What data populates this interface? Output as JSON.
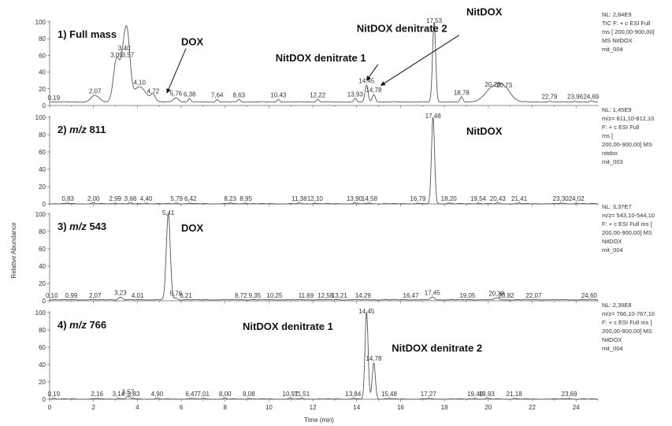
{
  "chart_data": {
    "type": "line",
    "xlabel": "Time (min)",
    "ylabel": "Relative Abundance",
    "xlim": [
      0,
      25
    ],
    "ylim": [
      0,
      100
    ],
    "x_ticks": [
      "0",
      "2",
      "4",
      "6",
      "8",
      "10",
      "12",
      "14",
      "16",
      "18",
      "20",
      "22",
      "24"
    ],
    "y_ticks": [
      "0",
      "20",
      "40",
      "60",
      "80",
      "100"
    ],
    "panels": [
      {
        "title_prefix": "1) ",
        "title_main": "Full mass",
        "title_mz": "",
        "side_info": [
          "NL: 2,84E9",
          "TIC F: + c ESI Full",
          "ms [ 200,00-900,00]",
          "MS NitDOX",
          "mit_004"
        ],
        "baseline": 4,
        "peaks": [
          {
            "x": 0.19,
            "label": "0,19",
            "h": 4
          },
          {
            "x": 2.07,
            "label": "2,07",
            "h": 12,
            "w": 0.18
          },
          {
            "x": 3.05,
            "label": "3,05",
            "h": 55,
            "w": 0.14
          },
          {
            "x": 3.4,
            "label": "3,40",
            "h": 63,
            "w": 0.14
          },
          {
            "x": 3.57,
            "label": "3,57",
            "h": 55,
            "w": 0.12
          },
          {
            "x": 4.1,
            "label": "4,10",
            "h": 22,
            "w": 0.3
          },
          {
            "x": 4.72,
            "label": "4,72",
            "h": 12,
            "w": 0.1
          },
          {
            "x": 5.76,
            "label": "5,76",
            "h": 9,
            "w": 0.12
          },
          {
            "x": 6.38,
            "label": "6,38",
            "h": 8
          },
          {
            "x": 7.64,
            "label": "7,64",
            "h": 7
          },
          {
            "x": 8.63,
            "label": "8,63",
            "h": 7
          },
          {
            "x": 10.43,
            "label": "10,43",
            "h": 7
          },
          {
            "x": 12.22,
            "label": "12,22",
            "h": 7
          },
          {
            "x": 13.93,
            "label": "13,93",
            "h": 8
          },
          {
            "x": 14.45,
            "label": "14,45",
            "h": 24,
            "w": 0.07
          },
          {
            "x": 14.78,
            "label": "14,78",
            "h": 13,
            "w": 0.07
          },
          {
            "x": 17.53,
            "label": "17,53",
            "h": 100,
            "w": 0.07
          },
          {
            "x": 18.78,
            "label": "18,78",
            "h": 10
          },
          {
            "x": 20.2,
            "label": "20,20",
            "h": 20,
            "w": 0.35
          },
          {
            "x": 20.73,
            "label": "20,73",
            "h": 19,
            "w": 0.3
          },
          {
            "x": 22.79,
            "label": "22,79",
            "h": 5
          },
          {
            "x": 23.96,
            "label": "23,96",
            "h": 5
          },
          {
            "x": 24.69,
            "label": "24,69",
            "h": 5
          }
        ],
        "annotations": [
          {
            "text": "DOX",
            "x": 6.0,
            "y": 72,
            "target_x": 5.35,
            "target_y": 15
          },
          {
            "text": "NitDOX denitrate 2",
            "x": 14.0,
            "y": 88,
            "target_x": 15.1,
            "target_y": 24
          },
          {
            "text": "NitDOX denitrate 1",
            "x": 10.3,
            "y": 53,
            "target_x": 14.45,
            "target_y": 30
          },
          {
            "text": "NitDOX",
            "x": 19.0,
            "y": 108
          }
        ]
      },
      {
        "title_prefix": "2) ",
        "title_main": "",
        "title_mz": "811",
        "side_info": [
          "NL: 1,45E9",
          "m/z= 811,10-812,10",
          "F: + c ESI Full",
          "ms [",
          "200,00-900,00]  MS",
          "nitdox",
          "mit_003"
        ],
        "baseline": 0,
        "peaks": [
          {
            "x": 0.83,
            "label": "0,83",
            "h": 1
          },
          {
            "x": 2.0,
            "label": "2,00",
            "h": 1
          },
          {
            "x": 2.99,
            "label": "2,99",
            "h": 1
          },
          {
            "x": 3.68,
            "label": "3,68",
            "h": 1
          },
          {
            "x": 4.4,
            "label": "4,40",
            "h": 1
          },
          {
            "x": 5.79,
            "label": "5,79",
            "h": 1
          },
          {
            "x": 6.42,
            "label": "6,42",
            "h": 1
          },
          {
            "x": 8.23,
            "label": "8,23",
            "h": 1
          },
          {
            "x": 8.95,
            "label": "8,95",
            "h": 1
          },
          {
            "x": 11.38,
            "label": "11,38",
            "h": 1
          },
          {
            "x": 12.1,
            "label": "12,10",
            "h": 1
          },
          {
            "x": 13.9,
            "label": "13,90",
            "h": 1
          },
          {
            "x": 14.58,
            "label": "14,58",
            "h": 1
          },
          {
            "x": 16.79,
            "label": "16,79",
            "h": 1
          },
          {
            "x": 17.48,
            "label": "17,48",
            "h": 100,
            "w": 0.07
          },
          {
            "x": 18.2,
            "label": "18,20",
            "h": 1
          },
          {
            "x": 19.54,
            "label": "19,54",
            "h": 1
          },
          {
            "x": 20.43,
            "label": "20,43",
            "h": 1
          },
          {
            "x": 21.41,
            "label": "21,41",
            "h": 1
          },
          {
            "x": 23.3,
            "label": "23,30",
            "h": 1
          },
          {
            "x": 24.02,
            "label": "24,02",
            "h": 1
          }
        ],
        "annotations": [
          {
            "text": "NitDOX",
            "x": 19.0,
            "y": 80
          }
        ]
      },
      {
        "title_prefix": "3) ",
        "title_main": "",
        "title_mz": "543",
        "side_info": [
          "NL: 3,37E7",
          "m/z= 543,10-544,10",
          "F: + c ESI Full ms [",
          "200,00-900,00]  MS",
          "NitDOX",
          "mit_004"
        ],
        "baseline": 1,
        "peaks": [
          {
            "x": 0.1,
            "label": "0,10",
            "h": 1
          },
          {
            "x": 0.99,
            "label": "0,99",
            "h": 1
          },
          {
            "x": 2.07,
            "label": "2,07",
            "h": 1
          },
          {
            "x": 3.23,
            "label": "3,23",
            "h": 4,
            "w": 0.08
          },
          {
            "x": 4.01,
            "label": "4,01",
            "h": 1
          },
          {
            "x": 5.41,
            "label": "5,41",
            "h": 100,
            "w": 0.09
          },
          {
            "x": 5.76,
            "label": "5,76",
            "h": 3
          },
          {
            "x": 6.21,
            "label": "6,21",
            "h": 1
          },
          {
            "x": 8.72,
            "label": "8,72",
            "h": 1
          },
          {
            "x": 9.35,
            "label": "9,35",
            "h": 1
          },
          {
            "x": 10.25,
            "label": "10,25",
            "h": 1
          },
          {
            "x": 11.69,
            "label": "11,69",
            "h": 1
          },
          {
            "x": 12.58,
            "label": "12,58",
            "h": 1
          },
          {
            "x": 13.21,
            "label": "13,21",
            "h": 1
          },
          {
            "x": 14.29,
            "label": "14,29",
            "h": 1
          },
          {
            "x": 16.47,
            "label": "16,47",
            "h": 1
          },
          {
            "x": 17.45,
            "label": "17,45",
            "h": 4,
            "w": 0.08
          },
          {
            "x": 19.05,
            "label": "19,05",
            "h": 1
          },
          {
            "x": 20.38,
            "label": "20,38",
            "h": 3,
            "w": 0.1
          },
          {
            "x": 20.82,
            "label": "20,82",
            "h": 1
          },
          {
            "x": 22.07,
            "label": "22,07",
            "h": 1
          },
          {
            "x": 24.6,
            "label": "24,60",
            "h": 1
          }
        ],
        "annotations": [
          {
            "text": "DOX",
            "x": 6.0,
            "y": 80
          }
        ]
      },
      {
        "title_prefix": "4) ",
        "title_main": "",
        "title_mz": "766",
        "side_info": [
          "NL: 2,39E8",
          "m/z= 766,10-767,10",
          "F: + c ESI Full ms [",
          "200,00-900,00]  MS",
          "NitDOX",
          "mit_004"
        ],
        "baseline": 0,
        "peaks": [
          {
            "x": 0.19,
            "label": "0,19",
            "h": 1
          },
          {
            "x": 2.16,
            "label": "2,16",
            "h": 1
          },
          {
            "x": 3.14,
            "label": "3,14",
            "h": 1
          },
          {
            "x": 3.57,
            "label": "3,57",
            "h": 3,
            "w": 0.08
          },
          {
            "x": 3.83,
            "label": "3,83",
            "h": 1
          },
          {
            "x": 4.9,
            "label": "4,90",
            "h": 1
          },
          {
            "x": 6.47,
            "label": "6,47",
            "h": 1
          },
          {
            "x": 7.01,
            "label": "7,01",
            "h": 1
          },
          {
            "x": 8.0,
            "label": "8,00",
            "h": 1
          },
          {
            "x": 9.08,
            "label": "9,08",
            "h": 1
          },
          {
            "x": 10.97,
            "label": "10,97",
            "h": 1
          },
          {
            "x": 11.51,
            "label": "11,51",
            "h": 1
          },
          {
            "x": 13.84,
            "label": "13,84",
            "h": 1
          },
          {
            "x": 14.45,
            "label": "14,45",
            "h": 100,
            "w": 0.07
          },
          {
            "x": 14.78,
            "label": "14,78",
            "h": 42,
            "w": 0.07
          },
          {
            "x": 15.48,
            "label": "15,48",
            "h": 1
          },
          {
            "x": 17.27,
            "label": "17,27",
            "h": 1
          },
          {
            "x": 19.4,
            "label": "19,40",
            "h": 1
          },
          {
            "x": 19.93,
            "label": "19,93",
            "h": 1
          },
          {
            "x": 21.18,
            "label": "21,18",
            "h": 1
          },
          {
            "x": 23.69,
            "label": "23,69",
            "h": 1
          }
        ],
        "annotations": [
          {
            "text": "NitDOX denitrate 1",
            "x": 8.8,
            "y": 80
          },
          {
            "text": "NitDOX denitrate 2",
            "x": 15.6,
            "y": 55
          }
        ]
      }
    ]
  }
}
